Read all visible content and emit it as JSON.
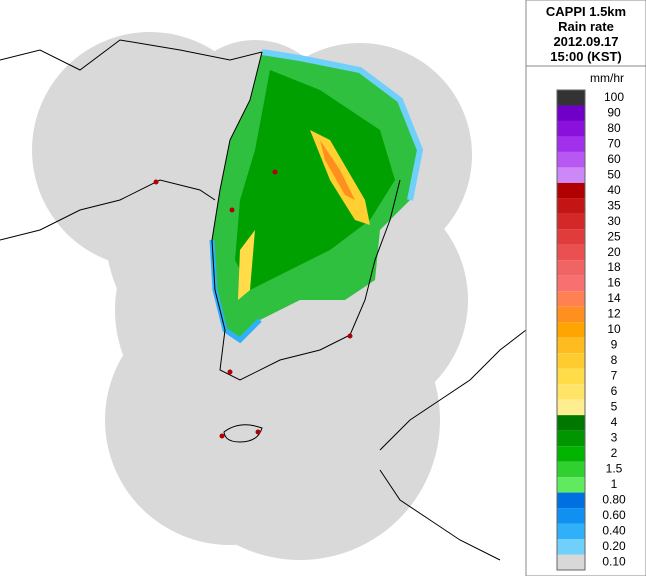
{
  "header": {
    "lines": [
      "CAPPI 1.5km",
      "Rain rate",
      "2012.09.17",
      "15:00 (KST)"
    ]
  },
  "legend": {
    "unit": "mm/hr",
    "items": [
      {
        "label": "100",
        "color": "#333333"
      },
      {
        "label": "90",
        "color": "#7000c8"
      },
      {
        "label": "80",
        "color": "#8a10dc"
      },
      {
        "label": "70",
        "color": "#a030ec"
      },
      {
        "label": "60",
        "color": "#b858f2"
      },
      {
        "label": "50",
        "color": "#cc88f6"
      },
      {
        "label": "40",
        "color": "#b00000"
      },
      {
        "label": "35",
        "color": "#c41414"
      },
      {
        "label": "30",
        "color": "#d42828"
      },
      {
        "label": "25",
        "color": "#e03c3c"
      },
      {
        "label": "20",
        "color": "#ea5050"
      },
      {
        "label": "18",
        "color": "#f06464"
      },
      {
        "label": "16",
        "color": "#f87070"
      },
      {
        "label": "14",
        "color": "#ff8050"
      },
      {
        "label": "12",
        "color": "#ff9020"
      },
      {
        "label": "10",
        "color": "#ffa400"
      },
      {
        "label": "9",
        "color": "#ffbc20"
      },
      {
        "label": "8",
        "color": "#ffcc30"
      },
      {
        "label": "7",
        "color": "#ffdc48"
      },
      {
        "label": "6",
        "color": "#ffe468"
      },
      {
        "label": "5",
        "color": "#ffee90"
      },
      {
        "label": "4",
        "color": "#007800"
      },
      {
        "label": "3",
        "color": "#009600"
      },
      {
        "label": "2",
        "color": "#00b400"
      },
      {
        "label": "1.5",
        "color": "#30d030"
      },
      {
        "label": "1",
        "color": "#60ea60"
      },
      {
        "label": "0.80",
        "color": "#0070e0"
      },
      {
        "label": "0.60",
        "color": "#1090f0"
      },
      {
        "label": "0.40",
        "color": "#30b0f8"
      },
      {
        "label": "0.20",
        "color": "#70d0fc"
      },
      {
        "label": "0.10",
        "color": "#d8d8d8"
      }
    ]
  }
}
